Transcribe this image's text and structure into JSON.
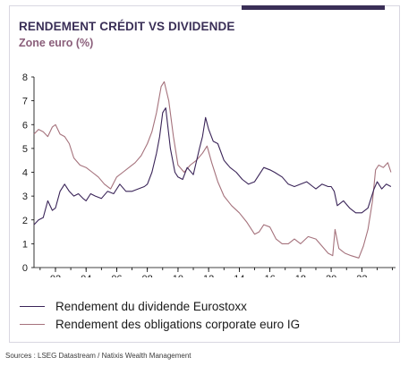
{
  "header": {
    "title": "RENDEMENT CRÉDIT VS DIVIDENDE",
    "subtitle": "Zone euro (%)"
  },
  "colors": {
    "accent": "#3a2f57",
    "series_dividend": "#3a2458",
    "series_corporate": "#a5727c"
  },
  "source": "Sources : LSEG Datastream / Natixis Wealth Management",
  "chart_data": {
    "type": "line",
    "title": "RENDEMENT CRÉDIT VS DIVIDENDE",
    "subtitle": "Zone euro (%)",
    "xlabel": "",
    "ylabel": "",
    "xlim": [
      2000.6,
      2024.2
    ],
    "ylim": [
      0,
      8
    ],
    "yticks": [
      0,
      1,
      2,
      3,
      4,
      5,
      6,
      7,
      8
    ],
    "xticks": [
      2002,
      2004,
      2006,
      2008,
      2010,
      2012,
      2014,
      2016,
      2018,
      2020,
      2022
    ],
    "xtick_labels": [
      "02",
      "04",
      "06",
      "08",
      "10",
      "12",
      "14",
      "16",
      "18",
      "20",
      "22"
    ],
    "grid": false,
    "legend_position": "bottom",
    "series": [
      {
        "name": "Rendement du dividende Eurostoxx",
        "x": [
          2000.6,
          2000.9,
          2001.2,
          2001.5,
          2001.8,
          2002.0,
          2002.3,
          2002.6,
          2002.9,
          2003.2,
          2003.5,
          2003.8,
          2004.0,
          2004.3,
          2004.6,
          2005.0,
          2005.4,
          2005.8,
          2006.2,
          2006.6,
          2007.0,
          2007.4,
          2007.8,
          2008.0,
          2008.3,
          2008.6,
          2008.8,
          2009.0,
          2009.2,
          2009.5,
          2009.8,
          2010.0,
          2010.3,
          2010.6,
          2011.0,
          2011.4,
          2011.6,
          2011.8,
          2012.0,
          2012.3,
          2012.6,
          2013.0,
          2013.4,
          2013.8,
          2014.2,
          2014.6,
          2015.0,
          2015.3,
          2015.6,
          2016.0,
          2016.3,
          2016.8,
          2017.2,
          2017.6,
          2018.0,
          2018.4,
          2018.8,
          2019.0,
          2019.4,
          2019.8,
          2020.0,
          2020.2,
          2020.4,
          2020.8,
          2021.2,
          2021.6,
          2022.0,
          2022.4,
          2022.8,
          2023.0,
          2023.3,
          2023.6,
          2023.9
        ],
        "values": [
          1.8,
          2.0,
          2.1,
          2.8,
          2.4,
          2.5,
          3.2,
          3.5,
          3.2,
          3.0,
          3.1,
          2.9,
          2.8,
          3.1,
          3.0,
          2.9,
          3.2,
          3.1,
          3.5,
          3.2,
          3.2,
          3.3,
          3.4,
          3.5,
          4.0,
          4.8,
          5.5,
          6.5,
          6.7,
          5.0,
          4.0,
          3.8,
          3.7,
          4.2,
          3.9,
          5.0,
          5.5,
          6.3,
          5.8,
          5.3,
          5.2,
          4.5,
          4.2,
          4.0,
          3.7,
          3.5,
          3.6,
          3.9,
          4.2,
          4.1,
          4.0,
          3.8,
          3.5,
          3.4,
          3.5,
          3.6,
          3.4,
          3.3,
          3.5,
          3.4,
          3.4,
          3.2,
          2.6,
          2.8,
          2.5,
          2.3,
          2.3,
          2.5,
          3.3,
          3.6,
          3.3,
          3.5,
          3.4
        ]
      },
      {
        "name": "Rendement des obligations corporate euro IG",
        "x": [
          2000.6,
          2000.9,
          2001.2,
          2001.5,
          2001.8,
          2002.0,
          2002.3,
          2002.6,
          2002.9,
          2003.2,
          2003.6,
          2004.0,
          2004.4,
          2004.8,
          2005.2,
          2005.6,
          2006.0,
          2006.4,
          2006.8,
          2007.2,
          2007.6,
          2008.0,
          2008.3,
          2008.6,
          2008.9,
          2009.1,
          2009.4,
          2009.7,
          2010.0,
          2010.4,
          2010.8,
          2011.2,
          2011.6,
          2011.9,
          2012.2,
          2012.6,
          2013.0,
          2013.5,
          2014.0,
          2014.5,
          2015.0,
          2015.3,
          2015.6,
          2016.0,
          2016.4,
          2016.8,
          2017.2,
          2017.6,
          2018.0,
          2018.5,
          2019.0,
          2019.4,
          2019.8,
          2020.1,
          2020.25,
          2020.5,
          2020.9,
          2021.3,
          2021.8,
          2022.1,
          2022.4,
          2022.7,
          2022.9,
          2023.1,
          2023.4,
          2023.7,
          2023.9
        ],
        "values": [
          5.6,
          5.8,
          5.7,
          5.5,
          5.9,
          6.0,
          5.6,
          5.5,
          5.2,
          4.6,
          4.3,
          4.2,
          4.0,
          3.8,
          3.5,
          3.3,
          3.8,
          4.0,
          4.2,
          4.4,
          4.7,
          5.2,
          5.7,
          6.5,
          7.6,
          7.8,
          7.0,
          5.5,
          4.3,
          4.0,
          4.3,
          4.5,
          4.8,
          5.1,
          4.4,
          3.6,
          3.0,
          2.6,
          2.3,
          1.9,
          1.4,
          1.5,
          1.8,
          1.7,
          1.2,
          1.0,
          1.0,
          1.2,
          1.0,
          1.3,
          1.2,
          0.9,
          0.6,
          0.5,
          1.6,
          0.8,
          0.6,
          0.5,
          0.4,
          0.9,
          1.6,
          2.8,
          4.1,
          4.3,
          4.2,
          4.4,
          4.0
        ]
      }
    ]
  }
}
